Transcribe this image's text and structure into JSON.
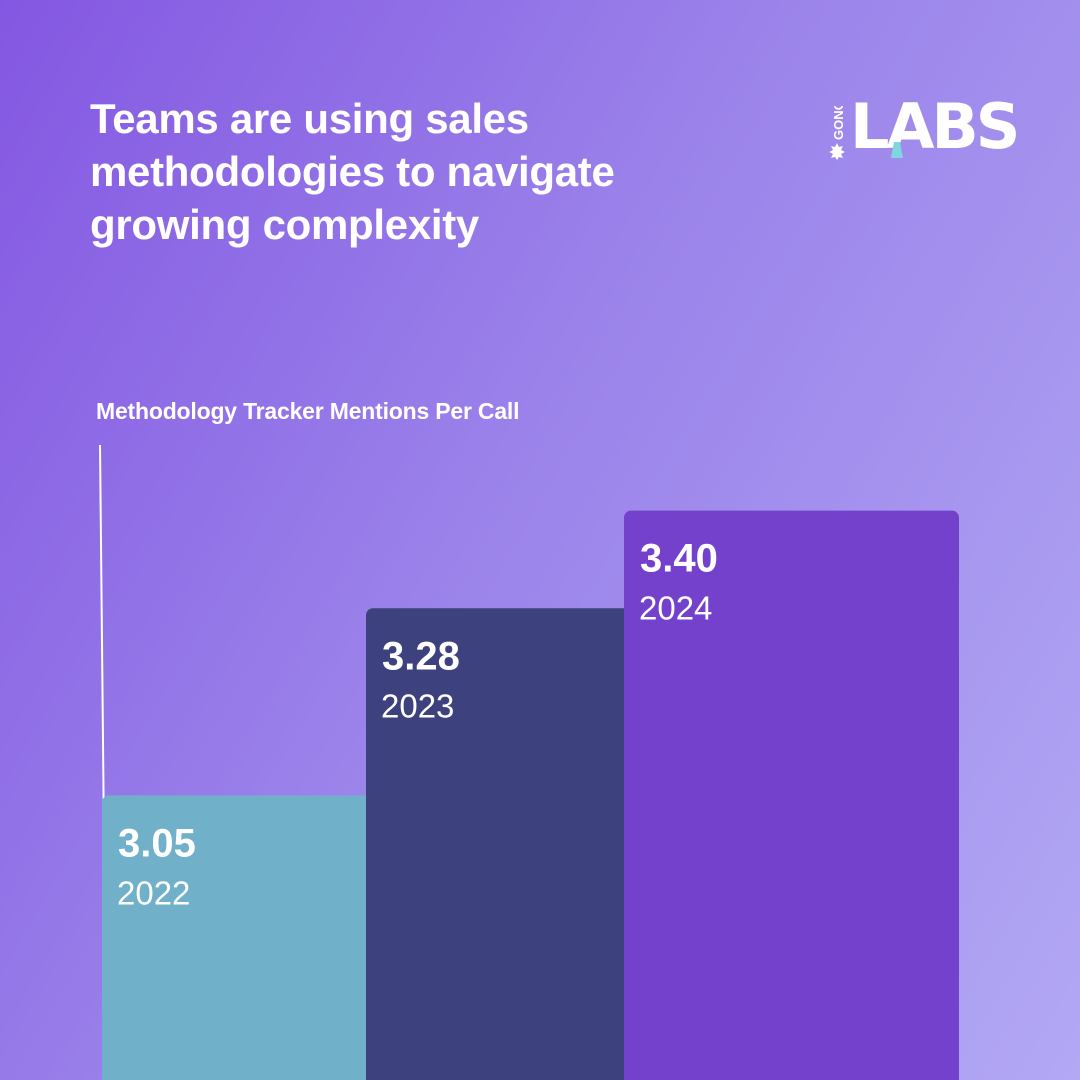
{
  "headline": "Teams are using sales methodologies to navigate growing complexity",
  "logo": {
    "brand": "GONG",
    "wordmark": "LABS"
  },
  "colors": {
    "bar_2022": "#70b0c8",
    "bar_2023": "#3d417d",
    "bar_2024": "#7441cc",
    "text": "#ffffff",
    "logo_accent": "#7fd6dc"
  },
  "chart_data": {
    "type": "bar",
    "title": "Methodology Tracker Mentions Per Call",
    "categories": [
      "2022",
      "2023",
      "2024"
    ],
    "values": [
      3.05,
      3.28,
      3.4
    ],
    "value_labels": [
      "3.05",
      "3.28",
      "3.40"
    ],
    "bar_colors": [
      "#70b0c8",
      "#3d417d",
      "#7441cc"
    ],
    "ylim": [
      2.7,
      3.45
    ],
    "grid": false,
    "legend": "none"
  }
}
